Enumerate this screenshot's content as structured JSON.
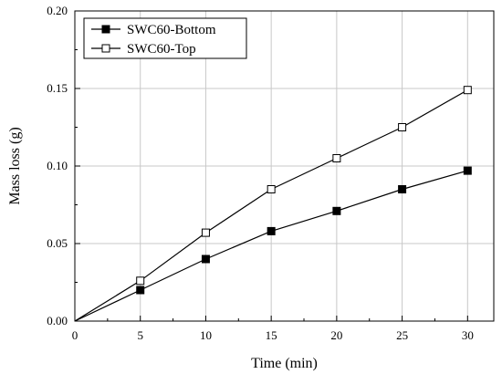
{
  "chart_data": {
    "type": "line",
    "xlabel": "Time (min)",
    "ylabel": "Mass loss (g)",
    "xlim": [
      0,
      32
    ],
    "ylim": [
      0,
      0.2
    ],
    "xticks": [
      0,
      5,
      10,
      15,
      20,
      25,
      30
    ],
    "yticks": [
      0.0,
      0.05,
      0.1,
      0.15,
      0.2
    ],
    "xtick_labels": [
      "0",
      "5",
      "10",
      "15",
      "20",
      "25",
      "30"
    ],
    "ytick_labels": [
      "0.00",
      "0.05",
      "0.10",
      "0.15",
      "0.20"
    ],
    "grid": true,
    "legend_position": "top-left",
    "series": [
      {
        "name": "SWC60-Bottom",
        "marker": "filled-square",
        "x": [
          0,
          5,
          10,
          15,
          20,
          25,
          30
        ],
        "y": [
          0.0,
          0.02,
          0.04,
          0.058,
          0.071,
          0.085,
          0.097
        ]
      },
      {
        "name": "SWC60-Top",
        "marker": "open-square",
        "x": [
          0,
          5,
          10,
          15,
          20,
          25,
          30
        ],
        "y": [
          0.0,
          0.026,
          0.057,
          0.085,
          0.105,
          0.125,
          0.149
        ]
      }
    ],
    "colors": {
      "line": "#000000",
      "grid": "#c8c8c8",
      "background": "#ffffff"
    }
  }
}
